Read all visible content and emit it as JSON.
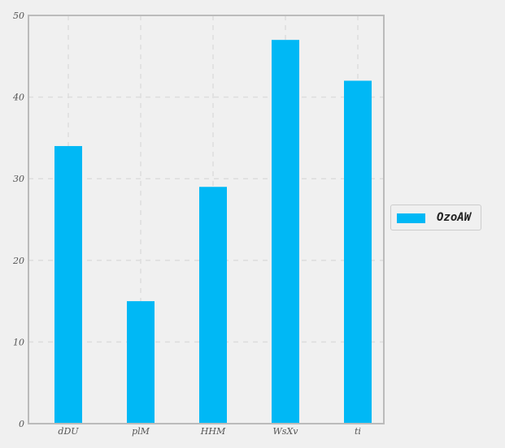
{
  "chart_data": {
    "type": "bar",
    "categories": [
      "dDU",
      "plM",
      "HHM",
      "WsXv",
      "ti"
    ],
    "series": [
      {
        "name": "OzoAW",
        "values": [
          34,
          15,
          29,
          47,
          42
        ],
        "color": "#00b8f5"
      }
    ],
    "ylim": [
      0,
      50
    ],
    "yticks": [
      0,
      10,
      20,
      30,
      40,
      50
    ],
    "grid": true,
    "legend_position": "right"
  },
  "legend": {
    "label": "OzoAW"
  },
  "colors": {
    "bar": "#00b8f5",
    "background": "#f0f0f0",
    "axis": "#bbbbbb",
    "grid": "#dddddd"
  }
}
